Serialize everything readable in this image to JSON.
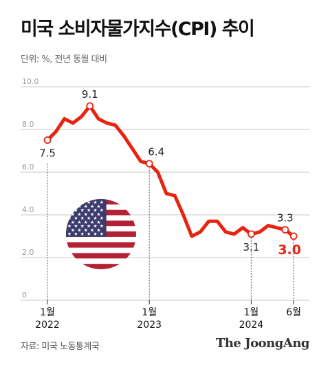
{
  "title": "미국 소비자물가지수(CPI) 추이",
  "unit_note": "단위: %, 전년 동월 대비",
  "source": "자료: 미국 노동통계국",
  "brand": "The JoongAng",
  "colors": {
    "line": "#e8230f",
    "grid": "#c8c8c8",
    "label": "#222222",
    "highlight": "#e8230f"
  },
  "flag_icon": "us-flag-icon",
  "chart_data": {
    "type": "line",
    "title": "미국 소비자물가지수(CPI) 추이",
    "xlabel": "",
    "ylabel": "",
    "ylim": [
      0,
      10
    ],
    "yticks": [
      "0",
      "2.0",
      "4.0",
      "6.0",
      "8.0",
      "10.0"
    ],
    "grid": true,
    "x": [
      "2022-01",
      "2022-02",
      "2022-03",
      "2022-04",
      "2022-05",
      "2022-06",
      "2022-07",
      "2022-08",
      "2022-09",
      "2022-10",
      "2022-11",
      "2022-12",
      "2023-01",
      "2023-02",
      "2023-03",
      "2023-04",
      "2023-05",
      "2023-06",
      "2023-07",
      "2023-08",
      "2023-09",
      "2023-10",
      "2023-11",
      "2023-12",
      "2024-01",
      "2024-02",
      "2024-03",
      "2024-04",
      "2024-05",
      "2024-06"
    ],
    "values": [
      7.5,
      7.9,
      8.5,
      8.3,
      8.6,
      9.1,
      8.5,
      8.3,
      8.2,
      7.7,
      7.1,
      6.5,
      6.4,
      6.0,
      5.0,
      4.9,
      4.0,
      3.0,
      3.2,
      3.7,
      3.7,
      3.2,
      3.1,
      3.4,
      3.1,
      3.2,
      3.5,
      3.4,
      3.3,
      3.0
    ],
    "x_ticks": [
      {
        "month": "1월",
        "year": "2022",
        "index": 0
      },
      {
        "month": "1월",
        "year": "2023",
        "index": 12
      },
      {
        "month": "1월",
        "year": "2024",
        "index": 24
      },
      {
        "month": "6월",
        "year": "",
        "index": 29
      }
    ],
    "annotations": [
      {
        "index": 0,
        "label": "7.5",
        "pos": "below",
        "guide": false,
        "highlight": false
      },
      {
        "index": 5,
        "label": "9.1",
        "pos": "above",
        "guide": false,
        "highlight": false
      },
      {
        "index": 12,
        "label": "6.4",
        "pos": "above-right",
        "guide": true,
        "highlight": false
      },
      {
        "index": 24,
        "label": "3.1",
        "pos": "below",
        "guide": true,
        "highlight": false
      },
      {
        "index": 28,
        "label": "3.3",
        "pos": "above",
        "guide": false,
        "highlight": false
      },
      {
        "index": 29,
        "label": "3.0",
        "pos": "below",
        "guide": true,
        "highlight": true
      }
    ]
  }
}
